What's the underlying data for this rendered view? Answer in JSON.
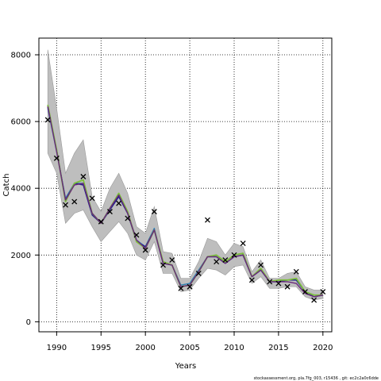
{
  "chart_data": {
    "type": "line",
    "title": "",
    "xlabel": "Years",
    "ylabel": "Catch",
    "xlim": [
      1988,
      2021
    ],
    "ylim": [
      -300,
      8500
    ],
    "xticks": [
      1990,
      1995,
      2000,
      2005,
      2010,
      2015,
      2020
    ],
    "yticks": [
      0,
      2000,
      4000,
      6000,
      8000
    ],
    "grid": true,
    "x": [
      1989,
      1990,
      1991,
      1992,
      1993,
      1994,
      1995,
      1996,
      1997,
      1998,
      1999,
      2000,
      2001,
      2002,
      2003,
      2004,
      2005,
      2006,
      2007,
      2008,
      2009,
      2010,
      2011,
      2012,
      2013,
      2014,
      2015,
      2016,
      2017,
      2018,
      2019,
      2020
    ],
    "band_upper": [
      8150,
      6400,
      4450,
      5050,
      5450,
      3750,
      3300,
      4000,
      4450,
      3850,
      2850,
      2650,
      3450,
      2100,
      2050,
      1300,
      1300,
      1800,
      2500,
      2400,
      2000,
      2350,
      2250,
      1500,
      1850,
      1300,
      1300,
      1450,
      1500,
      1050,
      950,
      950
    ],
    "band_lower": [
      5050,
      4450,
      2950,
      3250,
      3350,
      2850,
      2400,
      2700,
      3000,
      2650,
      2000,
      1850,
      2400,
      1450,
      1450,
      900,
      950,
      1300,
      1600,
      1550,
      1400,
      1650,
      1700,
      1150,
      1350,
      1000,
      1000,
      1050,
      1050,
      750,
      650,
      700
    ],
    "series": [
      {
        "name": "",
        "color": "#2e7fb6",
        "values": [
          6400,
          5100,
          3700,
          4150,
          4150,
          3250,
          2950,
          3400,
          3750,
          3250,
          2450,
          2250,
          2800,
          1750,
          1700,
          1100,
          1150,
          1550,
          1950,
          1950,
          1750,
          1950,
          2000,
          1350,
          1550,
          1200,
          1200,
          1250,
          1250,
          900,
          800,
          800
        ]
      },
      {
        "name": "",
        "color": "#1a1a8c",
        "values": [
          6450,
          5150,
          3650,
          4150,
          4100,
          3200,
          2950,
          3350,
          3750,
          3250,
          2400,
          2250,
          2750,
          1750,
          1700,
          1050,
          1100,
          1500,
          1950,
          1950,
          1750,
          1950,
          2000,
          1350,
          1550,
          1200,
          1200,
          1250,
          1250,
          900,
          750,
          800
        ]
      },
      {
        "name": "",
        "color": "#7cbf3a",
        "values": [
          6500,
          5150,
          3600,
          4150,
          4250,
          3250,
          2950,
          3400,
          3850,
          3300,
          2400,
          2200,
          2750,
          1800,
          1700,
          1050,
          1100,
          1500,
          1950,
          2000,
          1800,
          2000,
          2050,
          1350,
          1600,
          1200,
          1250,
          1250,
          1300,
          900,
          800,
          800
        ]
      },
      {
        "name": "",
        "color": "#6a2a7a",
        "values": [
          6450,
          5100,
          3650,
          4100,
          4150,
          3250,
          2950,
          3400,
          3800,
          3250,
          2450,
          2200,
          2750,
          1750,
          1700,
          1050,
          1100,
          1500,
          1950,
          1950,
          1750,
          1950,
          2000,
          1350,
          1550,
          1200,
          1200,
          1200,
          1150,
          850,
          750,
          800
        ]
      }
    ],
    "observed": [
      {
        "x": 1989,
        "y": 6050
      },
      {
        "x": 1990,
        "y": 4900
      },
      {
        "x": 1991,
        "y": 3500
      },
      {
        "x": 1992,
        "y": 3600
      },
      {
        "x": 1993,
        "y": 4350
      },
      {
        "x": 1994,
        "y": 3700
      },
      {
        "x": 1995,
        "y": 3000
      },
      {
        "x": 1996,
        "y": 3300
      },
      {
        "x": 1997,
        "y": 3550
      },
      {
        "x": 1998,
        "y": 3100
      },
      {
        "x": 1999,
        "y": 2600
      },
      {
        "x": 2000,
        "y": 2150
      },
      {
        "x": 2001,
        "y": 3300
      },
      {
        "x": 2002,
        "y": 1700
      },
      {
        "x": 2003,
        "y": 1850
      },
      {
        "x": 2004,
        "y": 1000
      },
      {
        "x": 2005,
        "y": 1050
      },
      {
        "x": 2006,
        "y": 1450
      },
      {
        "x": 2007,
        "y": 3050
      },
      {
        "x": 2008,
        "y": 1800
      },
      {
        "x": 2009,
        "y": 1850
      },
      {
        "x": 2010,
        "y": 2000
      },
      {
        "x": 2011,
        "y": 2350
      },
      {
        "x": 2012,
        "y": 1250
      },
      {
        "x": 2013,
        "y": 1700
      },
      {
        "x": 2014,
        "y": 1200
      },
      {
        "x": 2015,
        "y": 1150
      },
      {
        "x": 2016,
        "y": 1050
      },
      {
        "x": 2017,
        "y": 1500
      },
      {
        "x": 2018,
        "y": 900
      },
      {
        "x": 2019,
        "y": 650
      },
      {
        "x": 2020,
        "y": 900
      }
    ],
    "band_color": "#bebebe",
    "credit": "stockassessment.org, pla.7fg_003, r15436 , git: ec2c2a0c6dde"
  }
}
